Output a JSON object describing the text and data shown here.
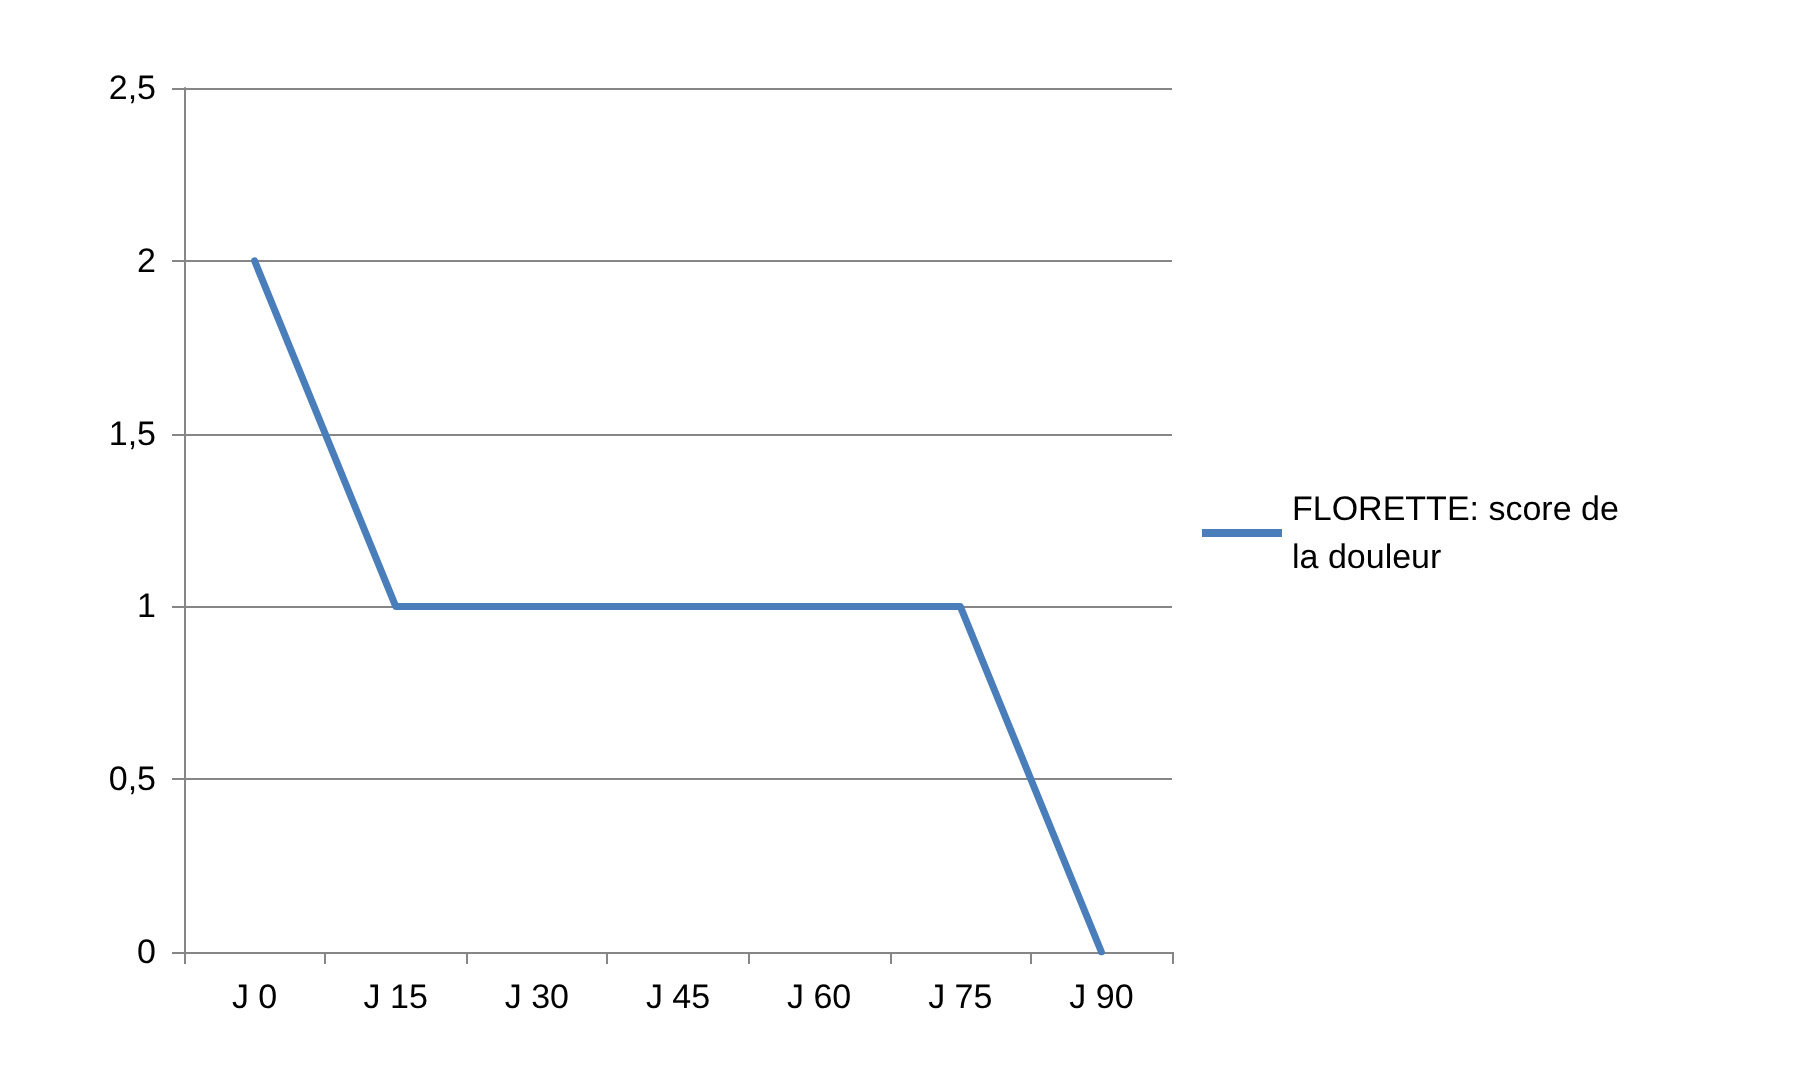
{
  "chart_data": {
    "type": "line",
    "categories": [
      "J 0",
      "J 15",
      "J 30",
      "J 45",
      "J 60",
      "J 75",
      "J 90"
    ],
    "series": [
      {
        "name": "FLORETTE: score de la douleur",
        "color": "#4a7ebb",
        "values": [
          2,
          1,
          1,
          1,
          1,
          1,
          0
        ]
      }
    ],
    "ylim": [
      0,
      2.5
    ],
    "yticks": [
      0,
      {
        "value": 0.5,
        "label": "0,5"
      },
      1,
      {
        "value": 1.5,
        "label": "1,5"
      },
      2,
      {
        "value": 2.5,
        "label": "2,5"
      }
    ],
    "grid": "y",
    "legend": "right",
    "marker": "none",
    "line_style": "solid"
  }
}
